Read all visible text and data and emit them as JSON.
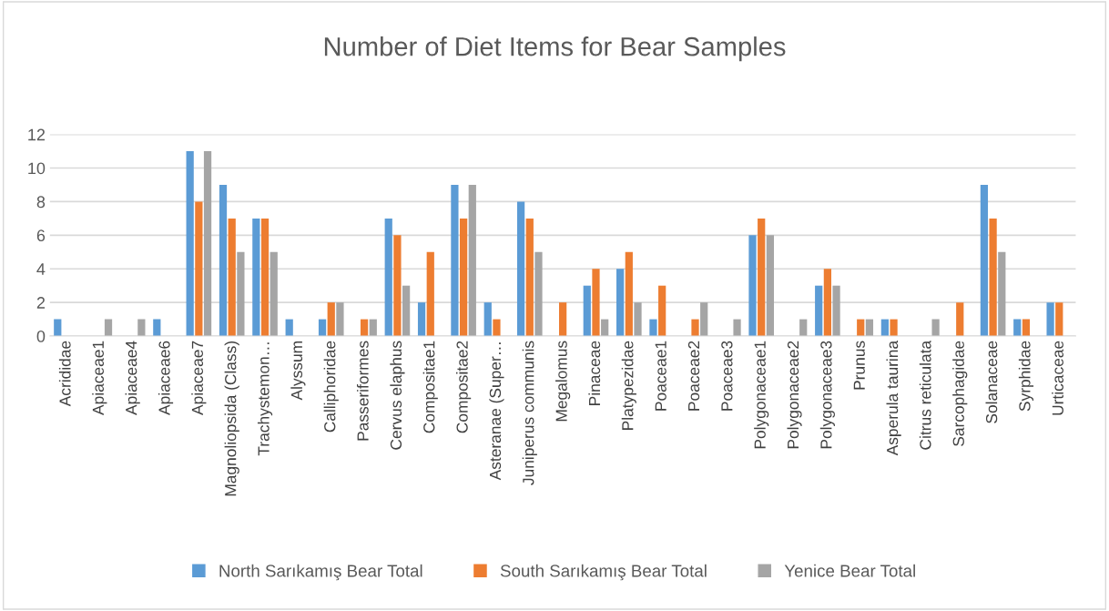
{
  "chart_data": {
    "type": "bar",
    "title": "Number of Diet Items for Bear Samples",
    "categories": [
      "Acrididae",
      "Apiaceae1",
      "Apiaceae4",
      "Apiaceae6",
      "Apiaceae7",
      "Magnoliopsida (Class)",
      "Trachystemon…",
      "Alyssum",
      "Calliphoridae",
      "Passeriformes",
      "Cervus elaphus",
      "Compositae1",
      "Compositae2",
      "Asteranae (Super…",
      "Juniperus communis",
      "Megalomus",
      "Pinaceae",
      "Platypezidae",
      "Poaceae1",
      "Poaceae2",
      "Poaceae3",
      "Polygonaceae1",
      "Polygonaceae2",
      "Polygonaceae3",
      "Prunus",
      "Asperula taurina",
      "Citrus reticulata",
      "Sarcophagidae",
      "Solanaceae",
      "Syrphidae",
      "Urticaceae"
    ],
    "series": [
      {
        "name": "North Sarıkamış Bear Total",
        "color": "#5b9bd5",
        "values": [
          1,
          0,
          0,
          1,
          11,
          9,
          7,
          1,
          1,
          0,
          7,
          2,
          9,
          2,
          8,
          0,
          3,
          4,
          1,
          0,
          0,
          6,
          0,
          3,
          0,
          1,
          0,
          0,
          9,
          1,
          2
        ]
      },
      {
        "name": "South Sarıkamış Bear Total",
        "color": "#ed7d31",
        "values": [
          0,
          0,
          0,
          0,
          8,
          7,
          7,
          0,
          2,
          1,
          6,
          5,
          7,
          1,
          7,
          2,
          4,
          5,
          3,
          1,
          0,
          7,
          0,
          4,
          1,
          1,
          0,
          2,
          7,
          1,
          2
        ]
      },
      {
        "name": "Yenice Bear Total",
        "color": "#a5a5a5",
        "values": [
          0,
          1,
          1,
          0,
          11,
          5,
          5,
          0,
          2,
          1,
          3,
          0,
          9,
          0,
          5,
          0,
          1,
          2,
          0,
          2,
          1,
          6,
          1,
          3,
          1,
          0,
          1,
          0,
          5,
          0,
          0
        ]
      }
    ],
    "ylim": [
      0,
      12
    ],
    "yticks": [
      0,
      2,
      4,
      6,
      8,
      10,
      12
    ],
    "grid": "y",
    "legend": "bottom"
  }
}
